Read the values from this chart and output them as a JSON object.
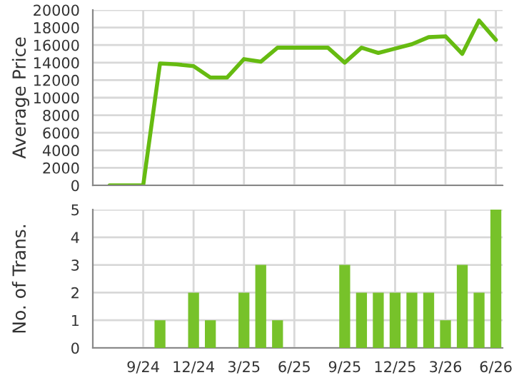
{
  "chart_data": [
    {
      "type": "line",
      "ylabel": "Average Price",
      "categories": [
        null,
        null,
        null,
        null,
        null,
        null,
        null,
        null,
        null,
        null,
        null,
        null,
        null,
        null,
        null,
        null,
        null,
        null,
        null,
        null,
        null,
        null,
        null,
        null
      ],
      "series": [
        {
          "color": "#66bb11",
          "line_style": "solid",
          "values": [
            0,
            0,
            0,
            13900,
            13800,
            13600,
            12300,
            12300,
            14400,
            14100,
            15700,
            15700,
            15700,
            15700,
            14000,
            15700,
            15100,
            15600,
            16100,
            16900,
            17000,
            15000,
            18800,
            16600
          ]
        }
      ],
      "ylim": [
        0,
        20000
      ],
      "yticks": [
        0,
        2000,
        4000,
        6000,
        8000,
        10000,
        12000,
        14000,
        16000,
        18000,
        20000
      ],
      "grid": true,
      "tick_labels": "y",
      "legend": false
    },
    {
      "type": "bar",
      "ylabel": "No. of Trans.",
      "categories": [
        null,
        null,
        "9/24",
        null,
        null,
        "12/24",
        null,
        null,
        "3/25",
        null,
        null,
        "6/25",
        null,
        null,
        "9/25",
        null,
        null,
        "12/25",
        null,
        null,
        "3/26",
        null,
        null,
        "6/26"
      ],
      "values": [
        0,
        0,
        0,
        1,
        0,
        2,
        1,
        0,
        2,
        3,
        1,
        0,
        0,
        0,
        3,
        2,
        2,
        2,
        2,
        2,
        1,
        3,
        2,
        5
      ],
      "color": "#77c22a",
      "ylim": [
        0,
        5
      ],
      "yticks": [
        0,
        1,
        2,
        3,
        4,
        5
      ],
      "grid": true,
      "legend": false
    }
  ]
}
